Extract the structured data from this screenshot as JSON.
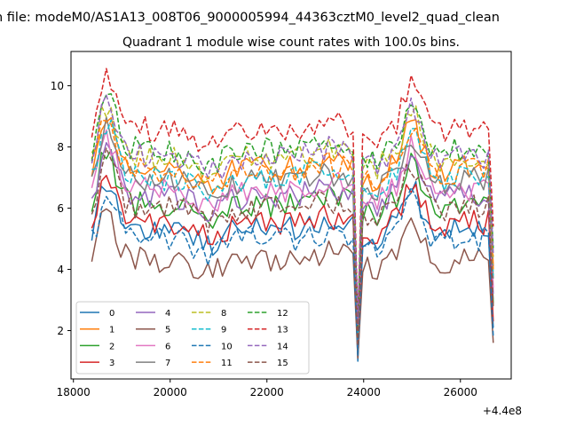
{
  "suptitle": "n file: modeM0/AS1A13_008T06_9000005994_44363cztM0_level2_quad_clean",
  "title": "Quadrant 1 module wise count rates with 100.0s bins.",
  "offset_text": "+4.4e8",
  "chart_data": {
    "type": "line",
    "x_offset": 440000000,
    "xlim": [
      17950,
      27050
    ],
    "ylim": [
      0.42,
      11.12
    ],
    "xticks": [
      18000,
      20000,
      22000,
      24000,
      26000
    ],
    "xtick_labels": [
      "18000",
      "20000",
      "22000",
      "24000",
      "26000"
    ],
    "yticks": [
      2,
      4,
      6,
      8,
      10
    ],
    "ytick_labels": [
      "2",
      "4",
      "6",
      "8",
      "10"
    ],
    "grid": false,
    "legend": {
      "placement": "lower-left",
      "columns": 4
    },
    "x_start": 18380,
    "x_step": 100,
    "dip_x": 23880,
    "series": [
      {
        "name": "0",
        "color": "#1f77b4",
        "dash": "solid",
        "base": 5.3,
        "dip": 1.0
      },
      {
        "name": "1",
        "color": "#ff7f0e",
        "dash": "solid",
        "base": 7.3,
        "dip": 1.6
      },
      {
        "name": "2",
        "color": "#2ca02c",
        "dash": "solid",
        "base": 6.1,
        "dip": 1.4
      },
      {
        "name": "3",
        "color": "#d62728",
        "dash": "solid",
        "base": 5.5,
        "dip": 1.2
      },
      {
        "name": "4",
        "color": "#9467bd",
        "dash": "solid",
        "base": 6.4,
        "dip": 1.3
      },
      {
        "name": "5",
        "color": "#8c564b",
        "dash": "solid",
        "base": 4.3,
        "dip": 1.1
      },
      {
        "name": "6",
        "color": "#e377c2",
        "dash": "solid",
        "base": 6.6,
        "dip": 1.5
      },
      {
        "name": "7",
        "color": "#7f7f7f",
        "dash": "solid",
        "base": 6.9,
        "dip": 1.7
      },
      {
        "name": "8",
        "color": "#bcbd22",
        "dash": "dashed",
        "base": 7.6,
        "dip": 1.8
      },
      {
        "name": "9",
        "color": "#17becf",
        "dash": "dashed",
        "base": 7.0,
        "dip": 1.9
      },
      {
        "name": "10",
        "color": "#1f77b4",
        "dash": "dashed",
        "base": 5.0,
        "dip": 1.2
      },
      {
        "name": "11",
        "color": "#ff7f0e",
        "dash": "dashed",
        "base": 7.2,
        "dip": 2.0
      },
      {
        "name": "12",
        "color": "#2ca02c",
        "dash": "dashed",
        "base": 7.9,
        "dip": 2.1
      },
      {
        "name": "13",
        "color": "#d62728",
        "dash": "dashed",
        "base": 8.6,
        "dip": 2.3
      },
      {
        "name": "14",
        "color": "#9467bd",
        "dash": "dashed",
        "base": 7.7,
        "dip": 2.2
      },
      {
        "name": "15",
        "color": "#8c564b",
        "dash": "dashed",
        "base": 6.0,
        "dip": 1.5
      }
    ]
  }
}
